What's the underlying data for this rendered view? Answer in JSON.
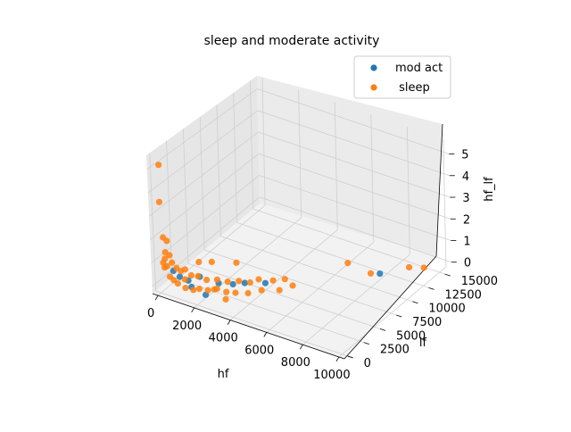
{
  "chart_data": {
    "type": "scatter",
    "projection": "3d",
    "title": "sleep and moderate activity",
    "xlabel": "hf",
    "ylabel": "lf",
    "zlabel": "hf_lf",
    "xticks": [
      "0",
      "2000",
      "4000",
      "6000",
      "8000",
      "10000"
    ],
    "yticks": [
      "0",
      "2500",
      "5000",
      "7500",
      "10000",
      "12500",
      "15000"
    ],
    "zticks": [
      "0",
      "1",
      "2",
      "3",
      "4",
      "5"
    ],
    "xlim": [
      -300,
      10300
    ],
    "ylim": [
      -500,
      16000
    ],
    "zlim": [
      -0.3,
      5.6
    ],
    "grid": true,
    "legend_position": "top-right",
    "series": [
      {
        "name": "mod act",
        "color": "#1f77b4",
        "points": [
          [
            1000,
            200,
            0.6
          ],
          [
            1400,
            400,
            0.5
          ],
          [
            1900,
            800,
            0.7
          ],
          [
            2600,
            1700,
            0.4
          ],
          [
            3100,
            2500,
            0.3
          ],
          [
            3500,
            3200,
            0.3
          ],
          [
            4200,
            4400,
            0.2
          ],
          [
            2300,
            500,
            0.1
          ],
          [
            700,
            100,
            0.8
          ],
          [
            1600,
            300,
            0.3
          ],
          [
            8900,
            9000,
            0.8
          ]
        ]
      },
      {
        "name": " sleep",
        "color": "#ff7f0e",
        "points": [
          [
            150,
            40,
            5.2
          ],
          [
            100,
            30,
            3.6
          ],
          [
            200,
            80,
            2.1
          ],
          [
            400,
            100,
            2.0
          ],
          [
            300,
            60,
            1.5
          ],
          [
            250,
            90,
            1.2
          ],
          [
            150,
            100,
            1.0
          ],
          [
            500,
            150,
            1.4
          ],
          [
            600,
            200,
            1.1
          ],
          [
            350,
            120,
            0.9
          ],
          [
            200,
            150,
            0.8
          ],
          [
            800,
            300,
            0.9
          ],
          [
            1000,
            400,
            0.8
          ],
          [
            1200,
            500,
            0.9
          ],
          [
            1500,
            600,
            0.7
          ],
          [
            1800,
            800,
            0.7
          ],
          [
            2200,
            1000,
            0.6
          ],
          [
            2600,
            1500,
            0.6
          ],
          [
            3000,
            2000,
            0.5
          ],
          [
            3400,
            2600,
            0.5
          ],
          [
            3800,
            3200,
            0.4
          ],
          [
            4100,
            3700,
            0.5
          ],
          [
            4600,
            4500,
            0.4
          ],
          [
            5000,
            5200,
            0.4
          ],
          [
            2800,
            900,
            0.4
          ],
          [
            3200,
            1200,
            0.3
          ],
          [
            3600,
            1500,
            0.3
          ],
          [
            2400,
            600,
            0.3
          ],
          [
            2000,
            400,
            0.3
          ],
          [
            1700,
            300,
            0.2
          ],
          [
            1300,
            200,
            0.2
          ],
          [
            900,
            150,
            0.3
          ],
          [
            700,
            100,
            0.4
          ],
          [
            500,
            80,
            0.5
          ],
          [
            4500,
            3000,
            0.3
          ],
          [
            5200,
            3800,
            0.3
          ],
          [
            7800,
            7200,
            1.4
          ],
          [
            8200,
            9500,
            0.5
          ],
          [
            9200,
            12600,
            0.3
          ],
          [
            9800,
            13200,
            0.3
          ],
          [
            3000,
            3400,
            1.0
          ],
          [
            2000,
            2400,
            1.0
          ],
          [
            1500,
            1800,
            1.0
          ],
          [
            5500,
            5000,
            0.3
          ],
          [
            4000,
            2300,
            0.2
          ],
          [
            2500,
            1300,
            0.2
          ],
          [
            3300,
            800,
            0.1
          ],
          [
            1100,
            700,
            0.4
          ]
        ]
      }
    ]
  }
}
